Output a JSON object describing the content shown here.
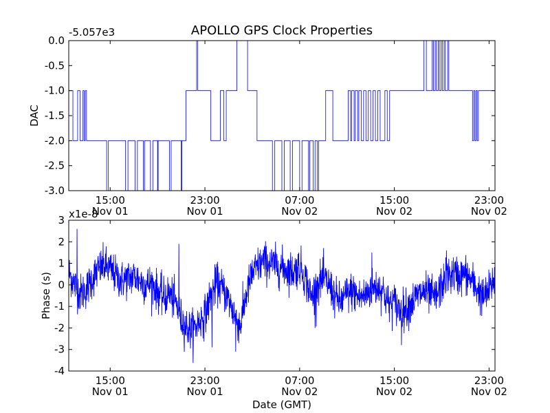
{
  "figure": {
    "title": "APOLLO GPS Clock Properties",
    "line_color": "#0000ff",
    "axes_color": "#000000",
    "background": "#ffffff"
  },
  "chart_data": [
    {
      "type": "line",
      "name": "dac-chart",
      "title": "APOLLO GPS Clock Properties",
      "ylabel": "DAC",
      "xlabel": "",
      "offset_text": "-5.057e3",
      "ylim": [
        -3.0,
        0.0
      ],
      "yticks": [
        0.0,
        -0.5,
        -1.0,
        -1.5,
        -2.0,
        -2.5,
        -3.0
      ],
      "ytick_labels": [
        "0.0",
        "-0.5",
        "-1.0",
        "-1.5",
        "-2.0",
        "-2.5",
        "-3.0"
      ],
      "xlim_hours": [
        11.5,
        47.5
      ],
      "xticks_hours": [
        15,
        23,
        31,
        39,
        47
      ],
      "xtick_labels": [
        [
          "15:00",
          "Nov 01"
        ],
        [
          "23:00",
          "Nov 01"
        ],
        [
          "07:00",
          "Nov 02"
        ],
        [
          "15:00",
          "Nov 02"
        ],
        [
          "23:00",
          "Nov 02"
        ]
      ],
      "series": [
        {
          "name": "DAC",
          "segments": [
            [
              11.5,
              -1.0
            ],
            [
              11.85,
              -2.0
            ],
            [
              12.1,
              -2.0
            ],
            [
              12.25,
              -1.0
            ],
            [
              12.45,
              -2.0
            ],
            [
              12.7,
              -1.0
            ],
            [
              12.8,
              -2.0
            ],
            [
              12.9,
              -1.0
            ],
            [
              13.0,
              -2.0
            ],
            [
              13.5,
              -2.0
            ],
            [
              14.6,
              -2.0
            ],
            [
              14.7,
              -3.0
            ],
            [
              14.85,
              -2.0
            ],
            [
              15.3,
              -2.0
            ],
            [
              16.0,
              -2.0
            ],
            [
              16.3,
              -3.0
            ],
            [
              16.5,
              -2.0
            ],
            [
              16.9,
              -2.0
            ],
            [
              17.1,
              -3.0
            ],
            [
              17.3,
              -2.0
            ],
            [
              17.6,
              -2.0
            ],
            [
              17.8,
              -3.0
            ],
            [
              17.9,
              -2.0
            ],
            [
              18.2,
              -2.0
            ],
            [
              18.4,
              -3.0
            ],
            [
              18.6,
              -2.0
            ],
            [
              18.9,
              -2.0
            ],
            [
              19.0,
              -3.0
            ],
            [
              19.05,
              -2.0
            ],
            [
              19.4,
              -2.0
            ],
            [
              19.9,
              -2.0
            ],
            [
              20.0,
              -3.0
            ],
            [
              20.15,
              -2.0
            ],
            [
              20.5,
              -2.0
            ],
            [
              20.8,
              -2.0
            ],
            [
              21.0,
              -3.0
            ],
            [
              21.05,
              -2.0
            ],
            [
              21.2,
              -2.0
            ],
            [
              21.4,
              -1.0
            ],
            [
              22.1,
              -1.0
            ],
            [
              22.3,
              0.0
            ],
            [
              22.4,
              -1.0
            ],
            [
              23.2,
              -1.0
            ],
            [
              23.5,
              -2.0
            ],
            [
              24.1,
              -2.0
            ],
            [
              24.3,
              -1.0
            ],
            [
              24.6,
              -2.0
            ],
            [
              24.8,
              -1.0
            ],
            [
              25.5,
              -1.0
            ],
            [
              25.7,
              0.0
            ],
            [
              26.4,
              0.0
            ],
            [
              26.6,
              -1.0
            ],
            [
              27.2,
              -1.0
            ],
            [
              27.4,
              -2.0
            ],
            [
              28.5,
              -2.0
            ],
            [
              28.7,
              -3.0
            ],
            [
              28.9,
              -2.0
            ],
            [
              29.3,
              -2.0
            ],
            [
              29.5,
              -3.0
            ],
            [
              29.7,
              -2.0
            ],
            [
              30.0,
              -2.0
            ],
            [
              30.2,
              -3.0
            ],
            [
              30.4,
              -2.0
            ],
            [
              30.8,
              -2.0
            ],
            [
              31.0,
              -3.0
            ],
            [
              31.2,
              -2.0
            ],
            [
              31.6,
              -2.0
            ],
            [
              31.75,
              -3.0
            ],
            [
              31.85,
              -2.0
            ],
            [
              32.0,
              -2.0
            ],
            [
              32.15,
              -3.0
            ],
            [
              32.3,
              -2.0
            ],
            [
              32.5,
              -3.0
            ],
            [
              32.6,
              -2.0
            ],
            [
              33.0,
              -2.0
            ],
            [
              33.2,
              -1.0
            ],
            [
              33.6,
              -1.0
            ],
            [
              33.8,
              -2.0
            ],
            [
              34.8,
              -2.0
            ],
            [
              35.1,
              -1.0
            ],
            [
              35.3,
              -2.0
            ],
            [
              35.4,
              -1.0
            ],
            [
              35.6,
              -2.0
            ],
            [
              35.7,
              -1.0
            ],
            [
              35.9,
              -2.0
            ],
            [
              36.0,
              -1.0
            ],
            [
              36.2,
              -2.0
            ],
            [
              36.4,
              -1.0
            ],
            [
              36.6,
              -2.0
            ],
            [
              36.8,
              -1.0
            ],
            [
              37.0,
              -2.0
            ],
            [
              37.2,
              -1.0
            ],
            [
              37.4,
              -2.0
            ],
            [
              37.6,
              -1.0
            ],
            [
              37.8,
              -2.0
            ],
            [
              38.0,
              -2.0
            ],
            [
              38.2,
              -1.0
            ],
            [
              38.4,
              -2.0
            ],
            [
              38.6,
              -1.0
            ],
            [
              38.9,
              -1.0
            ],
            [
              39.4,
              -1.0
            ],
            [
              40.3,
              -1.0
            ],
            [
              41.3,
              -1.0
            ],
            [
              41.5,
              0.0
            ],
            [
              41.7,
              -1.0
            ],
            [
              42.0,
              -1.0
            ],
            [
              42.2,
              0.0
            ],
            [
              42.3,
              -1.0
            ],
            [
              42.45,
              0.0
            ],
            [
              42.55,
              -1.0
            ],
            [
              42.7,
              0.0
            ],
            [
              42.8,
              -1.0
            ],
            [
              42.95,
              0.0
            ],
            [
              43.05,
              -1.0
            ],
            [
              43.2,
              0.0
            ],
            [
              43.3,
              -1.0
            ],
            [
              43.5,
              0.0
            ],
            [
              43.6,
              -1.0
            ],
            [
              44.0,
              -1.0
            ],
            [
              44.5,
              -1.0
            ],
            [
              45.1,
              -1.0
            ],
            [
              45.3,
              -1.0
            ],
            [
              45.5,
              -1.0
            ],
            [
              45.6,
              -2.0
            ],
            [
              45.7,
              -1.0
            ],
            [
              45.8,
              -2.0
            ],
            [
              45.9,
              -1.0
            ],
            [
              46.0,
              -2.0
            ],
            [
              46.1,
              -1.0
            ],
            [
              47.5,
              -1.0
            ]
          ]
        }
      ]
    },
    {
      "type": "line",
      "name": "phase-chart",
      "title": "",
      "ylabel": "Phase (s)",
      "xlabel": "Date (GMT)",
      "offset_text": "x1e-8",
      "ylim": [
        -4,
        3
      ],
      "yticks": [
        3,
        2,
        1,
        0,
        -1,
        -2,
        -3,
        -4
      ],
      "ytick_labels": [
        "3",
        "2",
        "1",
        "0",
        "-1",
        "-2",
        "-3",
        "-4"
      ],
      "xlim_hours": [
        11.5,
        47.5
      ],
      "xticks_hours": [
        15,
        23,
        31,
        39,
        47
      ],
      "xtick_labels": [
        [
          "15:00",
          "Nov 01"
        ],
        [
          "23:00",
          "Nov 01"
        ],
        [
          "07:00",
          "Nov 02"
        ],
        [
          "15:00",
          "Nov 02"
        ],
        [
          "23:00",
          "Nov 02"
        ]
      ],
      "series": [
        {
          "name": "Phase",
          "trend": [
            [
              11.5,
              0.6
            ],
            [
              12.0,
              0.0
            ],
            [
              12.5,
              -0.4
            ],
            [
              13.0,
              -0.2
            ],
            [
              13.5,
              0.3
            ],
            [
              14.0,
              0.7
            ],
            [
              14.5,
              0.9
            ],
            [
              15.0,
              0.7
            ],
            [
              15.5,
              0.4
            ],
            [
              16.0,
              0.2
            ],
            [
              16.5,
              0.3
            ],
            [
              17.0,
              0.4
            ],
            [
              17.5,
              0.2
            ],
            [
              18.0,
              0.0
            ],
            [
              18.5,
              0.1
            ],
            [
              19.0,
              -0.3
            ],
            [
              19.5,
              -0.6
            ],
            [
              20.0,
              -0.4
            ],
            [
              20.5,
              -0.8
            ],
            [
              21.0,
              -1.6
            ],
            [
              21.5,
              -2.0
            ],
            [
              22.0,
              -2.1
            ],
            [
              22.5,
              -1.7
            ],
            [
              23.0,
              -1.4
            ],
            [
              23.5,
              -0.5
            ],
            [
              24.0,
              0.1
            ],
            [
              24.5,
              -0.2
            ],
            [
              25.0,
              -0.7
            ],
            [
              25.5,
              -1.4
            ],
            [
              26.0,
              -1.9
            ],
            [
              26.5,
              -0.4
            ],
            [
              27.0,
              0.5
            ],
            [
              27.5,
              0.9
            ],
            [
              28.0,
              1.1
            ],
            [
              28.5,
              1.0
            ],
            [
              29.0,
              0.9
            ],
            [
              29.5,
              0.8
            ],
            [
              30.0,
              0.7
            ],
            [
              30.5,
              0.6
            ],
            [
              31.0,
              0.9
            ],
            [
              31.5,
              0.3
            ],
            [
              32.0,
              -0.6
            ],
            [
              32.5,
              0.0
            ],
            [
              33.0,
              0.3
            ],
            [
              33.5,
              0.0
            ],
            [
              34.0,
              -0.6
            ],
            [
              34.5,
              -0.8
            ],
            [
              35.0,
              -0.4
            ],
            [
              35.5,
              -0.3
            ],
            [
              36.0,
              -0.6
            ],
            [
              36.5,
              -0.5
            ],
            [
              37.0,
              -0.2
            ],
            [
              37.5,
              -0.1
            ],
            [
              38.0,
              -0.2
            ],
            [
              38.5,
              -0.9
            ],
            [
              39.0,
              -0.8
            ],
            [
              39.5,
              -1.2
            ],
            [
              40.0,
              -1.1
            ],
            [
              40.5,
              -0.8
            ],
            [
              41.0,
              -0.5
            ],
            [
              41.5,
              -0.3
            ],
            [
              42.0,
              -0.5
            ],
            [
              42.5,
              -0.6
            ],
            [
              43.0,
              0.0
            ],
            [
              43.5,
              0.4
            ],
            [
              44.0,
              0.5
            ],
            [
              44.5,
              0.4
            ],
            [
              45.0,
              0.5
            ],
            [
              45.5,
              0.2
            ],
            [
              46.0,
              -0.2
            ],
            [
              46.5,
              -0.6
            ],
            [
              47.0,
              -0.3
            ],
            [
              47.5,
              0.4
            ]
          ],
          "noise_amplitude": 0.45,
          "spikes": [
            [
              12.2,
              2.6
            ],
            [
              20.8,
              1.9
            ],
            [
              23.6,
              -2.9
            ],
            [
              25.6,
              -3.1
            ],
            [
              28.2,
              1.8
            ],
            [
              32.3,
              -2.0
            ],
            [
              37.1,
              1.5
            ],
            [
              39.6,
              -2.8
            ],
            [
              43.4,
              1.6
            ]
          ]
        }
      ]
    }
  ]
}
